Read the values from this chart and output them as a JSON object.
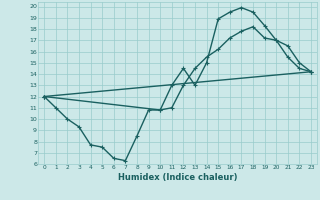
{
  "xlabel": "Humidex (Indice chaleur)",
  "bg_color": "#cce8e8",
  "grid_color": "#99cccc",
  "line_color": "#1a6060",
  "xlim": [
    -0.5,
    23.5
  ],
  "ylim": [
    6,
    20.4
  ],
  "xticks": [
    0,
    1,
    2,
    3,
    4,
    5,
    6,
    7,
    8,
    9,
    10,
    11,
    12,
    13,
    14,
    15,
    16,
    17,
    18,
    19,
    20,
    21,
    22,
    23
  ],
  "yticks": [
    6,
    7,
    8,
    9,
    10,
    11,
    12,
    13,
    14,
    15,
    16,
    17,
    18,
    19,
    20
  ],
  "line1_x": [
    0,
    1,
    2,
    3,
    4,
    5,
    6,
    7,
    8,
    9,
    10,
    11,
    12,
    13,
    14,
    15,
    16,
    17,
    18,
    19,
    20,
    21,
    22,
    23
  ],
  "line1_y": [
    12,
    11,
    10,
    9.3,
    7.7,
    7.5,
    6.5,
    6.3,
    8.5,
    10.8,
    10.8,
    13,
    14.5,
    13.0,
    15.0,
    18.9,
    19.5,
    19.9,
    19.5,
    18.3,
    17.0,
    15.5,
    14.5,
    14.2
  ],
  "line2_x": [
    0,
    10,
    11,
    12,
    13,
    14,
    15,
    16,
    17,
    18,
    19,
    20,
    21,
    22,
    23
  ],
  "line2_y": [
    12,
    10.8,
    11.0,
    13.0,
    14.5,
    15.5,
    16.2,
    17.2,
    17.8,
    18.2,
    17.2,
    17.0,
    16.5,
    15.0,
    14.2
  ],
  "line3_x": [
    0,
    23
  ],
  "line3_y": [
    12,
    14.2
  ],
  "marker_size": 3.5,
  "line_width": 1.0
}
